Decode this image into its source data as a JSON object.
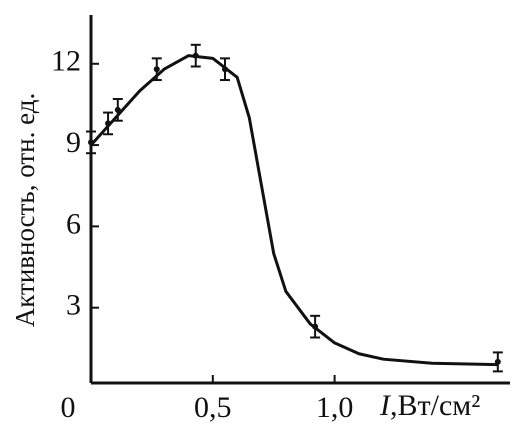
{
  "chart_data": {
    "type": "line",
    "y_label": "Активность, отн. ед.",
    "x_label_var": "I",
    "x_label_unit": ",Вт/см²",
    "xlim": [
      0,
      1.72
    ],
    "ylim": [
      0,
      13.8
    ],
    "xticks": [
      {
        "value": 0,
        "label": "0"
      },
      {
        "value": 0.5,
        "label": "0,5"
      },
      {
        "value": 1.0,
        "label": "1,0"
      }
    ],
    "yticks": [
      3,
      6,
      9,
      12
    ],
    "color": "#111111",
    "curve": {
      "x": [
        0,
        0.1,
        0.2,
        0.3,
        0.4,
        0.5,
        0.6,
        0.65,
        0.7,
        0.75,
        0.8,
        0.9,
        1.0,
        1.1,
        1.2,
        1.4,
        1.67
      ],
      "y": [
        9.0,
        10.0,
        11.0,
        11.8,
        12.3,
        12.2,
        11.5,
        10.0,
        7.5,
        5.0,
        3.6,
        2.4,
        1.7,
        1.3,
        1.1,
        0.95,
        0.9
      ]
    },
    "points": {
      "x": [
        0.0,
        0.07,
        0.11,
        0.27,
        0.43,
        0.55,
        0.92,
        1.67
      ],
      "y": [
        9.1,
        9.8,
        10.3,
        11.8,
        12.3,
        11.8,
        2.3,
        1.0
      ],
      "error": [
        0.4,
        0.4,
        0.4,
        0.4,
        0.4,
        0.4,
        0.4,
        0.35
      ]
    }
  }
}
